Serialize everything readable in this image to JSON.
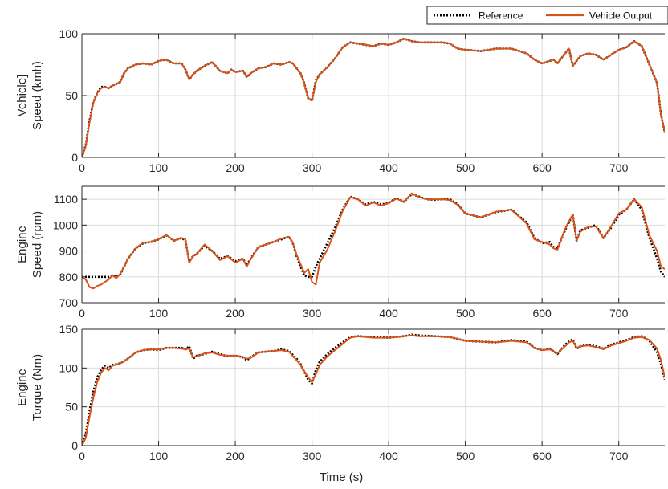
{
  "legend": {
    "entries": [
      {
        "label": "Reference",
        "style": "dotted",
        "color": "#000000"
      },
      {
        "label": "Vehicle Output",
        "style": "solid",
        "color": "#D95319"
      }
    ],
    "placement": "top-right"
  },
  "colors": {
    "reference": "#000000",
    "output": "#D95319",
    "grid": "#dcdcdc",
    "axis": "#262626"
  },
  "chart_data": [
    {
      "type": "line",
      "ylabel": [
        "Vehicle]",
        "Speed (kmh)"
      ],
      "xlabel": "",
      "xlim": [
        0,
        760
      ],
      "ylim": [
        0,
        100
      ],
      "xticks": [
        0,
        100,
        200,
        300,
        400,
        500,
        600,
        700
      ],
      "yticks": [
        0,
        50,
        100
      ],
      "grid": true,
      "series": [
        {
          "name": "Reference",
          "x": [
            0,
            5,
            10,
            15,
            20,
            25,
            30,
            35,
            40,
            50,
            55,
            60,
            70,
            80,
            90,
            100,
            110,
            120,
            130,
            135,
            140,
            145,
            150,
            160,
            170,
            180,
            190,
            195,
            200,
            210,
            215,
            220,
            230,
            240,
            250,
            260,
            270,
            275,
            280,
            285,
            290,
            295,
            300,
            305,
            310,
            320,
            330,
            340,
            350,
            360,
            370,
            380,
            390,
            400,
            410,
            420,
            430,
            440,
            450,
            460,
            470,
            480,
            490,
            500,
            520,
            540,
            560,
            580,
            590,
            600,
            610,
            615,
            620,
            630,
            635,
            640,
            645,
            650,
            660,
            670,
            680,
            690,
            700,
            710,
            720,
            730,
            740,
            750,
            755,
            760
          ],
          "y": [
            0,
            10,
            30,
            45,
            52,
            57,
            57,
            56,
            58,
            61,
            68,
            72,
            75,
            76,
            75,
            78,
            79,
            76,
            76,
            71,
            63,
            67,
            70,
            74,
            77,
            70,
            68,
            71,
            69,
            70,
            65,
            68,
            72,
            73,
            76,
            75,
            77,
            76,
            72,
            68,
            60,
            48,
            46,
            62,
            67,
            73,
            80,
            89,
            93,
            92,
            91,
            90,
            92,
            91,
            93,
            96,
            94,
            93,
            93,
            93,
            93,
            92,
            88,
            87,
            86,
            88,
            88,
            84,
            79,
            76,
            78,
            79,
            76,
            84,
            88,
            74,
            78,
            82,
            84,
            83,
            79,
            83,
            87,
            89,
            94,
            90,
            75,
            60,
            35,
            20
          ]
        },
        {
          "name": "Vehicle Output",
          "x": [
            0,
            5,
            10,
            15,
            20,
            25,
            30,
            35,
            40,
            50,
            55,
            60,
            70,
            80,
            90,
            100,
            110,
            120,
            130,
            135,
            140,
            145,
            150,
            160,
            170,
            180,
            190,
            195,
            200,
            210,
            215,
            220,
            230,
            240,
            250,
            260,
            270,
            275,
            280,
            285,
            290,
            295,
            300,
            305,
            310,
            320,
            330,
            340,
            350,
            360,
            370,
            380,
            390,
            400,
            410,
            420,
            430,
            440,
            450,
            460,
            470,
            480,
            490,
            500,
            520,
            540,
            560,
            580,
            590,
            600,
            610,
            615,
            620,
            630,
            635,
            640,
            645,
            650,
            660,
            670,
            680,
            690,
            700,
            710,
            720,
            730,
            740,
            750,
            755,
            760
          ],
          "y": [
            0,
            9,
            29,
            44,
            52,
            56,
            57,
            56,
            58,
            61,
            68,
            72,
            75,
            76,
            75,
            78,
            79,
            76,
            76,
            71,
            63,
            67,
            70,
            74,
            77,
            70,
            68,
            71,
            69,
            70,
            65,
            68,
            72,
            73,
            76,
            75,
            77,
            76,
            72,
            68,
            60,
            48,
            46,
            61,
            67,
            73,
            80,
            89,
            93,
            92,
            91,
            90,
            92,
            91,
            93,
            96,
            94,
            93,
            93,
            93,
            93,
            92,
            88,
            87,
            86,
            88,
            88,
            84,
            79,
            76,
            78,
            79,
            76,
            84,
            88,
            74,
            78,
            82,
            84,
            83,
            79,
            83,
            87,
            89,
            94,
            90,
            75,
            60,
            35,
            20
          ]
        }
      ]
    },
    {
      "type": "line",
      "ylabel": [
        "Engine",
        "Speed (rpm)"
      ],
      "xlabel": "",
      "xlim": [
        0,
        760
      ],
      "ylim": [
        700,
        1150
      ],
      "xticks": [
        0,
        100,
        200,
        300,
        400,
        500,
        600,
        700
      ],
      "yticks": [
        700,
        800,
        900,
        1000,
        1100
      ],
      "grid": true,
      "series": [
        {
          "name": "Reference",
          "x": [
            0,
            5,
            10,
            15,
            20,
            25,
            30,
            35,
            40,
            45,
            50,
            55,
            60,
            70,
            80,
            90,
            100,
            110,
            120,
            130,
            135,
            140,
            145,
            150,
            160,
            170,
            180,
            190,
            200,
            210,
            215,
            220,
            230,
            240,
            250,
            260,
            270,
            275,
            280,
            285,
            290,
            295,
            300,
            305,
            310,
            320,
            330,
            340,
            350,
            360,
            370,
            380,
            390,
            400,
            410,
            420,
            430,
            440,
            450,
            460,
            470,
            480,
            490,
            500,
            520,
            540,
            560,
            580,
            590,
            600,
            610,
            615,
            620,
            630,
            635,
            640,
            645,
            650,
            660,
            670,
            680,
            690,
            700,
            710,
            720,
            730,
            740,
            750,
            755,
            760
          ],
          "y": [
            800,
            800,
            800,
            800,
            800,
            800,
            800,
            800,
            803,
            800,
            810,
            838,
            870,
            910,
            930,
            935,
            945,
            960,
            940,
            950,
            940,
            860,
            880,
            890,
            920,
            900,
            870,
            880,
            860,
            870,
            845,
            870,
            915,
            925,
            935,
            945,
            955,
            930,
            880,
            840,
            805,
            800,
            800,
            840,
            870,
            930,
            990,
            1060,
            1110,
            1100,
            1080,
            1090,
            1080,
            1085,
            1105,
            1090,
            1120,
            1110,
            1100,
            1098,
            1100,
            1100,
            1080,
            1045,
            1030,
            1050,
            1060,
            1010,
            950,
            930,
            935,
            915,
            910,
            980,
            1010,
            1040,
            940,
            980,
            990,
            1000,
            950,
            990,
            1040,
            1060,
            1100,
            1060,
            950,
            870,
            820,
            800
          ]
        },
        {
          "name": "Vehicle Output",
          "x": [
            0,
            5,
            10,
            15,
            20,
            25,
            30,
            35,
            40,
            45,
            50,
            55,
            60,
            70,
            80,
            90,
            100,
            110,
            120,
            130,
            135,
            140,
            145,
            150,
            160,
            170,
            180,
            190,
            200,
            210,
            215,
            220,
            230,
            240,
            250,
            260,
            270,
            275,
            280,
            285,
            290,
            295,
            300,
            305,
            310,
            320,
            330,
            340,
            350,
            360,
            370,
            380,
            390,
            400,
            410,
            420,
            430,
            440,
            450,
            460,
            470,
            480,
            490,
            500,
            520,
            540,
            560,
            580,
            590,
            600,
            610,
            615,
            620,
            630,
            635,
            640,
            645,
            650,
            660,
            670,
            680,
            690,
            700,
            710,
            720,
            730,
            740,
            750,
            755,
            760
          ],
          "y": [
            800,
            790,
            760,
            755,
            765,
            770,
            780,
            790,
            806,
            795,
            812,
            838,
            870,
            910,
            932,
            935,
            945,
            962,
            940,
            950,
            945,
            855,
            880,
            890,
            925,
            900,
            865,
            880,
            855,
            870,
            840,
            868,
            915,
            925,
            935,
            948,
            955,
            932,
            885,
            850,
            815,
            830,
            780,
            770,
            855,
            905,
            975,
            1055,
            1108,
            1100,
            1075,
            1088,
            1075,
            1085,
            1102,
            1090,
            1123,
            1108,
            1100,
            1100,
            1100,
            1097,
            1078,
            1045,
            1030,
            1052,
            1060,
            1005,
            945,
            935,
            925,
            910,
            905,
            985,
            1015,
            1040,
            940,
            975,
            993,
            995,
            950,
            995,
            1045,
            1060,
            1100,
            1070,
            960,
            900,
            840,
            830
          ]
        }
      ]
    },
    {
      "type": "line",
      "ylabel": [
        "Engine",
        "Torque (Nm)"
      ],
      "xlabel": "Time (s)",
      "xlim": [
        0,
        760
      ],
      "ylim": [
        0,
        150
      ],
      "xticks": [
        0,
        100,
        200,
        300,
        400,
        500,
        600,
        700
      ],
      "yticks": [
        0,
        50,
        100,
        150
      ],
      "grid": true,
      "series": [
        {
          "name": "Reference",
          "x": [
            0,
            5,
            10,
            15,
            20,
            25,
            30,
            35,
            40,
            50,
            60,
            70,
            80,
            90,
            100,
            110,
            120,
            130,
            135,
            140,
            145,
            150,
            160,
            170,
            180,
            190,
            200,
            210,
            215,
            220,
            230,
            240,
            250,
            260,
            270,
            280,
            285,
            290,
            295,
            300,
            305,
            310,
            320,
            330,
            340,
            350,
            360,
            380,
            400,
            420,
            430,
            440,
            460,
            480,
            500,
            520,
            540,
            560,
            580,
            590,
            600,
            610,
            620,
            630,
            635,
            640,
            645,
            650,
            660,
            670,
            680,
            690,
            700,
            710,
            720,
            730,
            740,
            750,
            755,
            760
          ],
          "y": [
            0,
            15,
            45,
            70,
            88,
            98,
            103,
            100,
            104,
            106,
            112,
            120,
            123,
            124,
            123,
            126,
            126,
            126,
            124,
            128,
            112,
            116,
            118,
            121,
            118,
            115,
            116,
            114,
            110,
            114,
            120,
            121,
            122,
            124,
            122,
            112,
            105,
            95,
            85,
            80,
            98,
            108,
            118,
            126,
            133,
            140,
            141,
            140,
            139,
            141,
            143,
            142,
            141,
            140,
            135,
            134,
            133,
            136,
            134,
            126,
            123,
            125,
            118,
            130,
            134,
            137,
            125,
            128,
            130,
            128,
            125,
            130,
            133,
            136,
            140,
            141,
            135,
            120,
            105,
            85
          ]
        },
        {
          "name": "Vehicle Output",
          "x": [
            0,
            5,
            10,
            15,
            20,
            25,
            30,
            35,
            40,
            50,
            60,
            70,
            80,
            90,
            100,
            110,
            120,
            130,
            135,
            140,
            145,
            150,
            160,
            170,
            180,
            190,
            200,
            210,
            215,
            220,
            230,
            240,
            250,
            260,
            270,
            280,
            285,
            290,
            295,
            300,
            305,
            310,
            320,
            330,
            340,
            350,
            360,
            380,
            400,
            420,
            430,
            440,
            460,
            480,
            500,
            520,
            540,
            560,
            580,
            590,
            600,
            610,
            620,
            630,
            635,
            640,
            645,
            650,
            660,
            670,
            680,
            690,
            700,
            710,
            720,
            730,
            740,
            750,
            755,
            760
          ],
          "y": [
            0,
            10,
            38,
            62,
            82,
            94,
            100,
            97,
            103,
            106,
            112,
            120,
            123,
            124,
            124,
            126,
            126,
            125,
            124,
            125,
            114,
            115,
            119,
            120,
            117,
            116,
            116,
            114,
            112,
            113,
            120,
            121,
            122,
            123,
            121,
            110,
            104,
            96,
            88,
            82,
            92,
            104,
            115,
            123,
            131,
            139,
            141,
            139,
            139,
            141,
            142,
            141,
            141,
            140,
            135,
            134,
            133,
            135,
            133,
            126,
            123,
            124,
            119,
            128,
            133,
            135,
            126,
            128,
            129,
            127,
            124,
            129,
            132,
            135,
            139,
            140,
            136,
            125,
            110,
            88
          ]
        }
      ]
    }
  ]
}
